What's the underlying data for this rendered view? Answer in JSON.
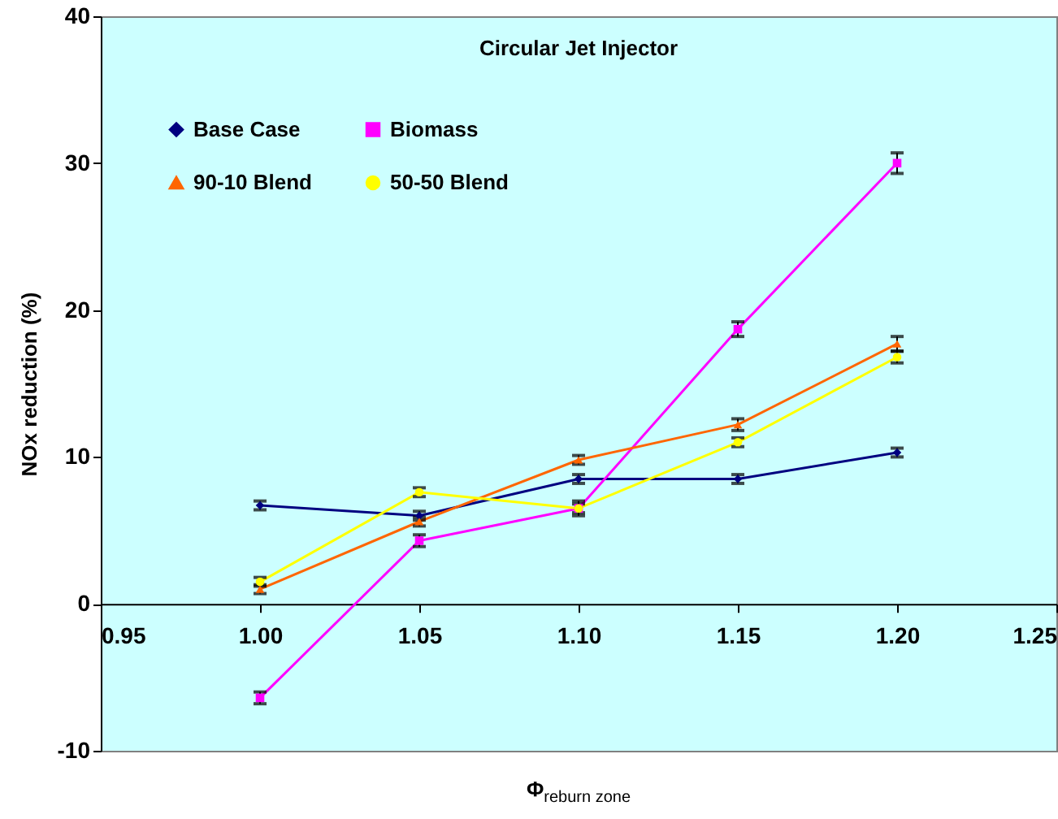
{
  "chart_data": {
    "type": "line",
    "title": "Circular Jet Injector",
    "xlabel": "Φ$_{reburn zone}$",
    "ylabel": "NOx reduction (%)",
    "x": [
      1.0,
      1.05,
      1.1,
      1.15,
      1.2
    ],
    "xlim": [
      0.95,
      1.25
    ],
    "xticks": [
      0.95,
      {
        "value": 1.0,
        "label": "1.00"
      },
      1.05,
      {
        "value": 1.1,
        "label": "1.10"
      },
      1.15,
      {
        "value": 1.2,
        "label": "1.20"
      },
      1.25
    ],
    "ylim": [
      -10,
      40
    ],
    "yticks": [
      -10,
      0,
      10,
      20,
      30,
      40
    ],
    "grid": false,
    "legend": "top left",
    "line_style": "solid",
    "series": [
      {
        "name": "Base Case",
        "color": "#000080",
        "marker": "diamond",
        "values": [
          6.7,
          6.0,
          8.5,
          8.5,
          10.3
        ],
        "errors": [
          0.3,
          0.3,
          0.3,
          0.3,
          0.3
        ]
      },
      {
        "name": "Biomass",
        "color": "#ff00ff",
        "marker": "square",
        "values": [
          -6.4,
          4.3,
          6.5,
          18.7,
          30.0
        ],
        "errors": [
          0.4,
          0.4,
          0.5,
          0.5,
          0.7
        ]
      },
      {
        "name": "90-10 Blend",
        "color": "#ff6600",
        "marker": "triangle",
        "values": [
          1.0,
          5.6,
          9.8,
          12.2,
          17.7
        ],
        "errors": [
          0.3,
          0.3,
          0.3,
          0.4,
          0.5
        ]
      },
      {
        "name": "50-50 Blend",
        "color": "#ffff00",
        "marker": "circle",
        "values": [
          1.5,
          7.6,
          6.5,
          11.0,
          16.8
        ],
        "errors": [
          0.3,
          0.3,
          0.3,
          0.3,
          0.4
        ]
      }
    ]
  }
}
